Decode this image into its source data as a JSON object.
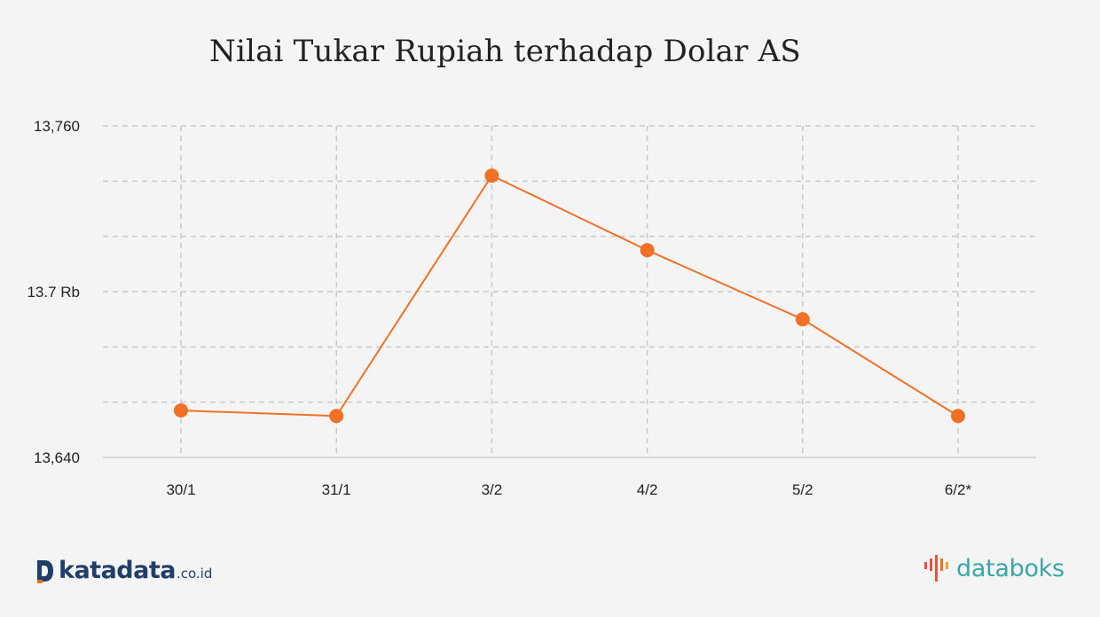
{
  "title": "Nilai Tukar Rupiah terhadap Dolar AS",
  "chart_data": {
    "type": "line",
    "categories": [
      "30/1",
      "31/1",
      "3/2",
      "4/2",
      "5/2",
      "6/2*"
    ],
    "series": [
      {
        "values": [
          13657,
          13655,
          13742,
          13715,
          13690,
          13655
        ]
      }
    ],
    "ylim": [
      13640,
      13760
    ],
    "y_gridlines": [
      13640,
      13660,
      13680,
      13700,
      13720,
      13740,
      13760
    ],
    "y_tick_labels": [
      {
        "value": 13760,
        "label": "13,760"
      },
      {
        "value": 13700,
        "label": "13.7 Rb"
      },
      {
        "value": 13640,
        "label": "13,640"
      }
    ],
    "line_color": "#f07126",
    "grid": "dashed",
    "legend": "none"
  },
  "branding": {
    "left_name": "katadata",
    "left_domain": ".co.id",
    "right_name": "databoks"
  }
}
